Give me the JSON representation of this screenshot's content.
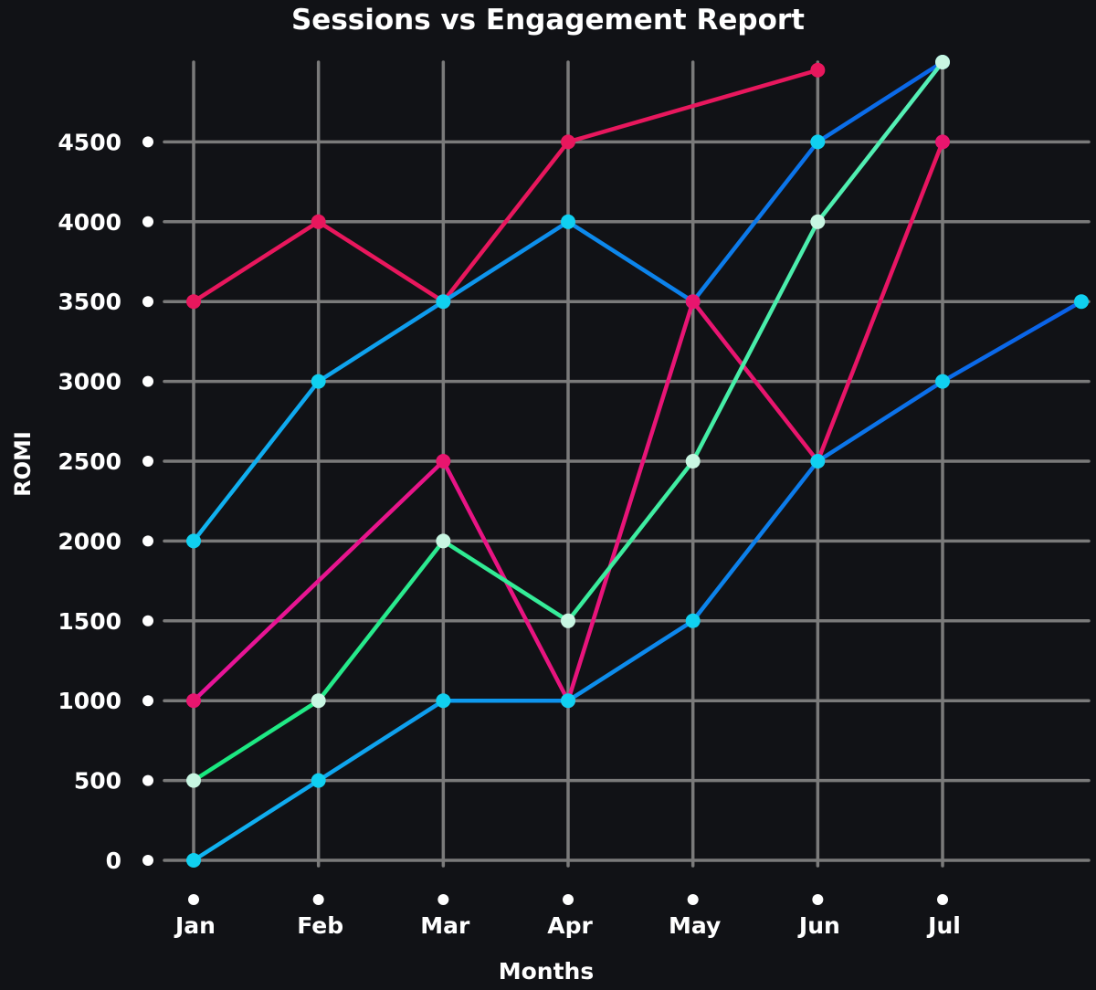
{
  "chart_data": {
    "type": "line",
    "title": "Sessions vs Engagement Report",
    "xlabel": "Months",
    "ylabel": "ROMI",
    "categories": [
      "Jan",
      "Feb",
      "Mar",
      "Apr",
      "May",
      "Jun",
      "Jul",
      ""
    ],
    "ylim": [
      0,
      5000
    ],
    "yticks": [
      0,
      500,
      1000,
      1500,
      2000,
      2500,
      3000,
      3500,
      4000,
      4500
    ],
    "grid": true,
    "legend": "none",
    "background": "#111216",
    "grid_color": "#7a7a7a",
    "series": [
      {
        "values": [
          3500,
          4000,
          3500,
          4500,
          null,
          4950,
          null,
          null
        ],
        "colors": [
          "#e8175d",
          "#e8175d"
        ],
        "marker": "#e8175d"
      },
      {
        "values": [
          2000,
          3000,
          3500,
          4000,
          3500,
          4500,
          5000,
          null
        ],
        "colors": [
          "#10b4f0",
          "#0a64e8"
        ],
        "marker": "#10d0f0"
      },
      {
        "values": [
          1000,
          null,
          2500,
          1000,
          3500,
          2500,
          4500,
          null
        ],
        "colors": [
          "#e8149a",
          "#e81560"
        ],
        "marker": "#e8156e"
      },
      {
        "values": [
          500,
          1000,
          2000,
          1500,
          2500,
          4000,
          5000,
          null
        ],
        "colors": [
          "#18e87e",
          "#58f0b8"
        ],
        "marker": "#c8f6e2"
      },
      {
        "values": [
          0,
          500,
          1000,
          1000,
          1500,
          2500,
          3000,
          3500
        ],
        "colors": [
          "#10b4f0",
          "#0a60e8"
        ],
        "marker": "#10d0f0"
      }
    ]
  }
}
